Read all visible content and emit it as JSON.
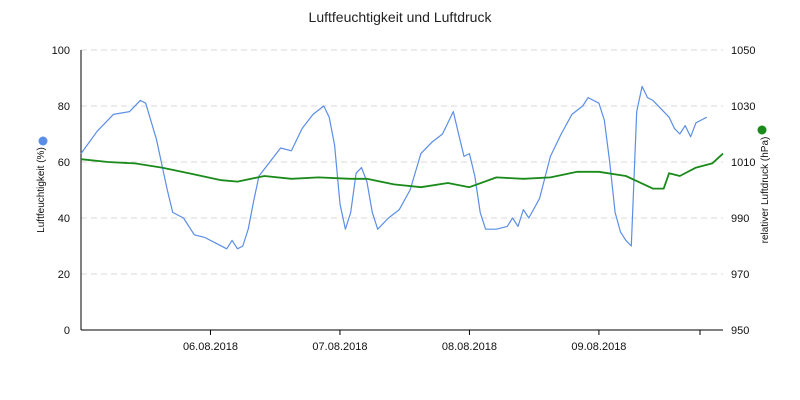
{
  "chart_data": {
    "type": "line",
    "title": "Luftfeuchtigkeit und Luftdruck",
    "x_range": [
      "2018-08-05T00:00",
      "2018-08-09T23:00"
    ],
    "x_tick_labels": [
      {
        "date": "2018-08-06T00:00",
        "label": "06.08.2018"
      },
      {
        "date": "2018-08-07T00:00",
        "label": "07.08.2018"
      },
      {
        "date": "2018-08-08T00:00",
        "label": "08.08.2018"
      },
      {
        "date": "2018-08-09T00:00",
        "label": "09.08.2018"
      }
    ],
    "y_left": {
      "label": "Luftfeuchtigkeit (%)",
      "range": [
        0,
        100
      ],
      "ticks": [
        "0",
        "20",
        "40",
        "60",
        "80",
        "100"
      ]
    },
    "y_right": {
      "label": "relativer Luftdruck (hPa)",
      "range": [
        950,
        1050
      ],
      "ticks": [
        "950",
        "970",
        "990",
        "1010",
        "1030",
        "1050"
      ]
    },
    "grid": true,
    "colors": {
      "humidity": "#5b8ee6",
      "pressure": "#1a8a1a"
    },
    "series": [
      {
        "axis": "left",
        "color": "#5b8ee6",
        "points": [
          [
            "2018-08-05T00:00",
            63
          ],
          [
            "2018-08-05T03:00",
            71
          ],
          [
            "2018-08-05T06:00",
            77
          ],
          [
            "2018-08-05T09:00",
            78
          ],
          [
            "2018-08-05T11:00",
            82
          ],
          [
            "2018-08-05T12:00",
            81
          ],
          [
            "2018-08-05T14:00",
            68
          ],
          [
            "2018-08-05T16:00",
            50
          ],
          [
            "2018-08-05T17:00",
            42
          ],
          [
            "2018-08-05T19:00",
            40
          ],
          [
            "2018-08-05T21:00",
            34
          ],
          [
            "2018-08-05T23:00",
            33
          ],
          [
            "2018-08-06T01:00",
            31
          ],
          [
            "2018-08-06T03:00",
            29
          ],
          [
            "2018-08-06T04:00",
            32
          ],
          [
            "2018-08-06T05:00",
            29
          ],
          [
            "2018-08-06T06:00",
            30
          ],
          [
            "2018-08-06T07:00",
            36
          ],
          [
            "2018-08-06T08:00",
            46
          ],
          [
            "2018-08-06T09:00",
            55
          ],
          [
            "2018-08-06T11:00",
            60
          ],
          [
            "2018-08-06T13:00",
            65
          ],
          [
            "2018-08-06T15:00",
            64
          ],
          [
            "2018-08-06T17:00",
            72
          ],
          [
            "2018-08-06T19:00",
            77
          ],
          [
            "2018-08-06T21:00",
            80
          ],
          [
            "2018-08-06T22:00",
            76
          ],
          [
            "2018-08-06T23:00",
            66
          ],
          [
            "2018-08-07T00:00",
            45
          ],
          [
            "2018-08-07T01:00",
            36
          ],
          [
            "2018-08-07T02:00",
            42
          ],
          [
            "2018-08-07T03:00",
            56
          ],
          [
            "2018-08-07T04:00",
            58
          ],
          [
            "2018-08-07T05:00",
            53
          ],
          [
            "2018-08-07T06:00",
            42
          ],
          [
            "2018-08-07T07:00",
            36
          ],
          [
            "2018-08-07T09:00",
            40
          ],
          [
            "2018-08-07T11:00",
            43
          ],
          [
            "2018-08-07T13:00",
            50
          ],
          [
            "2018-08-07T15:00",
            63
          ],
          [
            "2018-08-07T17:00",
            67
          ],
          [
            "2018-08-07T19:00",
            70
          ],
          [
            "2018-08-07T21:00",
            78
          ],
          [
            "2018-08-07T22:00",
            70
          ],
          [
            "2018-08-07T23:00",
            62
          ],
          [
            "2018-08-08T00:00",
            63
          ],
          [
            "2018-08-08T01:00",
            55
          ],
          [
            "2018-08-08T02:00",
            42
          ],
          [
            "2018-08-08T03:00",
            36
          ],
          [
            "2018-08-08T05:00",
            36
          ],
          [
            "2018-08-08T07:00",
            37
          ],
          [
            "2018-08-08T08:00",
            40
          ],
          [
            "2018-08-08T09:00",
            37
          ],
          [
            "2018-08-08T10:00",
            43
          ],
          [
            "2018-08-08T11:00",
            40
          ],
          [
            "2018-08-08T13:00",
            47
          ],
          [
            "2018-08-08T15:00",
            62
          ],
          [
            "2018-08-08T17:00",
            70
          ],
          [
            "2018-08-08T19:00",
            77
          ],
          [
            "2018-08-08T21:00",
            80
          ],
          [
            "2018-08-08T22:00",
            83
          ],
          [
            "2018-08-09T00:00",
            81
          ],
          [
            "2018-08-09T01:00",
            75
          ],
          [
            "2018-08-09T02:00",
            60
          ],
          [
            "2018-08-09T03:00",
            42
          ],
          [
            "2018-08-09T04:00",
            35
          ],
          [
            "2018-08-09T05:00",
            32
          ],
          [
            "2018-08-09T06:00",
            30
          ],
          [
            "2018-08-09T07:00",
            78
          ],
          [
            "2018-08-09T08:00",
            87
          ],
          [
            "2018-08-09T09:00",
            83
          ],
          [
            "2018-08-09T10:00",
            82
          ],
          [
            "2018-08-09T12:00",
            78
          ],
          [
            "2018-08-09T13:00",
            76
          ],
          [
            "2018-08-09T14:00",
            72
          ],
          [
            "2018-08-09T15:00",
            70
          ],
          [
            "2018-08-09T16:00",
            73
          ],
          [
            "2018-08-09T17:00",
            69
          ],
          [
            "2018-08-09T18:00",
            74
          ],
          [
            "2018-08-09T19:00",
            75
          ],
          [
            "2018-08-09T20:00",
            76
          ]
        ]
      },
      {
        "axis": "right",
        "color": "#1a8a1a",
        "points": [
          [
            "2018-08-05T00:00",
            1011
          ],
          [
            "2018-08-05T05:00",
            1010
          ],
          [
            "2018-08-05T10:00",
            1009.5
          ],
          [
            "2018-08-05T15:00",
            1008
          ],
          [
            "2018-08-05T20:00",
            1006
          ],
          [
            "2018-08-06T02:00",
            1003.5
          ],
          [
            "2018-08-06T05:00",
            1003
          ],
          [
            "2018-08-06T10:00",
            1005
          ],
          [
            "2018-08-06T15:00",
            1004
          ],
          [
            "2018-08-06T20:00",
            1004.5
          ],
          [
            "2018-08-07T02:00",
            1004
          ],
          [
            "2018-08-07T05:00",
            1004
          ],
          [
            "2018-08-07T10:00",
            1002
          ],
          [
            "2018-08-07T15:00",
            1001
          ],
          [
            "2018-08-07T20:00",
            1002.5
          ],
          [
            "2018-08-08T00:00",
            1001
          ],
          [
            "2018-08-08T05:00",
            1004.5
          ],
          [
            "2018-08-08T10:00",
            1004
          ],
          [
            "2018-08-08T15:00",
            1004.5
          ],
          [
            "2018-08-08T20:00",
            1006.5
          ],
          [
            "2018-08-09T00:00",
            1006.5
          ],
          [
            "2018-08-09T05:00",
            1005
          ],
          [
            "2018-08-09T10:00",
            1000.5
          ],
          [
            "2018-08-09T12:00",
            1000.5
          ],
          [
            "2018-08-09T13:00",
            1006
          ],
          [
            "2018-08-09T15:00",
            1005
          ],
          [
            "2018-08-09T18:00",
            1008
          ],
          [
            "2018-08-09T21:00",
            1009.5
          ],
          [
            "2018-08-09T23:00",
            1013
          ]
        ]
      }
    ]
  }
}
